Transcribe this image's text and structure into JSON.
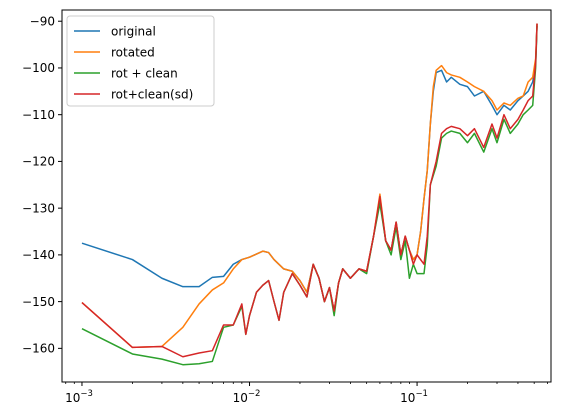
{
  "chart_data": {
    "type": "line",
    "title": "",
    "xlabel": "",
    "ylabel": "",
    "x_scale": "log",
    "xlim": [
      0.00076,
      0.63
    ],
    "ylim": [
      -167.2,
      -87.6
    ],
    "x_ticks": [
      {
        "value": 0.001,
        "base": "10",
        "exp": "−3"
      },
      {
        "value": 0.01,
        "base": "10",
        "exp": "−2"
      },
      {
        "value": 0.1,
        "base": "10",
        "exp": "−1"
      }
    ],
    "y_ticks": [
      {
        "value": -90,
        "label": "−90"
      },
      {
        "value": -100,
        "label": "−100"
      },
      {
        "value": -110,
        "label": "−110"
      },
      {
        "value": -120,
        "label": "−120"
      },
      {
        "value": -130,
        "label": "−130"
      },
      {
        "value": -140,
        "label": "−140"
      },
      {
        "value": -150,
        "label": "−150"
      },
      {
        "value": -160,
        "label": "−160"
      }
    ],
    "grid": false,
    "legend_position": "top-left",
    "series": [
      {
        "name": "original",
        "color": "#1f77b4",
        "points": [
          [
            0.001,
            -137.5
          ],
          [
            0.002,
            -141.0
          ],
          [
            0.003,
            -145.0
          ],
          [
            0.004,
            -146.8
          ],
          [
            0.005,
            -146.8
          ],
          [
            0.006,
            -144.8
          ],
          [
            0.007,
            -144.6
          ],
          [
            0.008,
            -142.0
          ],
          [
            0.009,
            -141.0
          ],
          [
            0.01,
            -140.5
          ],
          [
            0.012,
            -139.2
          ],
          [
            0.013,
            -139.5
          ],
          [
            0.014,
            -141.0
          ],
          [
            0.016,
            -143.0
          ],
          [
            0.018,
            -143.5
          ],
          [
            0.02,
            -145.5
          ],
          [
            0.022,
            -148.0
          ],
          [
            0.024,
            -142.0
          ],
          [
            0.026,
            -145.0
          ],
          [
            0.028,
            -150.0
          ],
          [
            0.03,
            -147.0
          ],
          [
            0.032,
            -152.0
          ],
          [
            0.034,
            -146.0
          ],
          [
            0.036,
            -143.0
          ],
          [
            0.04,
            -145.0
          ],
          [
            0.045,
            -143.0
          ],
          [
            0.05,
            -143.5
          ],
          [
            0.055,
            -136.0
          ],
          [
            0.06,
            -128.0
          ],
          [
            0.065,
            -137.0
          ],
          [
            0.07,
            -139.0
          ],
          [
            0.075,
            -133.0
          ],
          [
            0.08,
            -140.0
          ],
          [
            0.085,
            -136.0
          ],
          [
            0.09,
            -139.0
          ],
          [
            0.095,
            -141.0
          ],
          [
            0.1,
            -140.0
          ],
          [
            0.105,
            -135.0
          ],
          [
            0.11,
            -128.0
          ],
          [
            0.115,
            -122.0
          ],
          [
            0.12,
            -112.0
          ],
          [
            0.125,
            -105.0
          ],
          [
            0.13,
            -101.0
          ],
          [
            0.14,
            -100.5
          ],
          [
            0.15,
            -103.0
          ],
          [
            0.16,
            -102.0
          ],
          [
            0.18,
            -103.5
          ],
          [
            0.2,
            -104.0
          ],
          [
            0.22,
            -106.0
          ],
          [
            0.25,
            -105.0
          ],
          [
            0.28,
            -108.0
          ],
          [
            0.3,
            -110.0
          ],
          [
            0.33,
            -108.0
          ],
          [
            0.36,
            -109.0
          ],
          [
            0.4,
            -107.0
          ],
          [
            0.43,
            -106.0
          ],
          [
            0.46,
            -105.0
          ],
          [
            0.49,
            -103.0
          ],
          [
            0.51,
            -99.0
          ],
          [
            0.52,
            -90.5
          ]
        ]
      },
      {
        "name": "rotated",
        "color": "#ff7f0e",
        "points": [
          [
            0.001,
            -150.2
          ],
          [
            0.002,
            -159.8
          ],
          [
            0.003,
            -159.6
          ],
          [
            0.004,
            -155.5
          ],
          [
            0.005,
            -150.5
          ],
          [
            0.006,
            -147.5
          ],
          [
            0.007,
            -146.0
          ],
          [
            0.008,
            -143.0
          ],
          [
            0.009,
            -141.0
          ],
          [
            0.01,
            -140.5
          ],
          [
            0.012,
            -139.2
          ],
          [
            0.013,
            -139.5
          ],
          [
            0.014,
            -141.0
          ],
          [
            0.016,
            -143.0
          ],
          [
            0.018,
            -143.5
          ],
          [
            0.02,
            -145.5
          ],
          [
            0.022,
            -148.0
          ],
          [
            0.024,
            -142.0
          ],
          [
            0.026,
            -145.0
          ],
          [
            0.028,
            -150.0
          ],
          [
            0.03,
            -147.0
          ],
          [
            0.032,
            -152.0
          ],
          [
            0.034,
            -146.0
          ],
          [
            0.036,
            -143.0
          ],
          [
            0.04,
            -145.0
          ],
          [
            0.045,
            -143.0
          ],
          [
            0.05,
            -143.5
          ],
          [
            0.055,
            -136.0
          ],
          [
            0.06,
            -127.0
          ],
          [
            0.065,
            -137.0
          ],
          [
            0.07,
            -139.0
          ],
          [
            0.075,
            -133.0
          ],
          [
            0.08,
            -140.0
          ],
          [
            0.085,
            -136.0
          ],
          [
            0.09,
            -139.0
          ],
          [
            0.095,
            -141.0
          ],
          [
            0.1,
            -140.0
          ],
          [
            0.105,
            -135.0
          ],
          [
            0.11,
            -128.0
          ],
          [
            0.115,
            -122.0
          ],
          [
            0.12,
            -112.0
          ],
          [
            0.125,
            -104.0
          ],
          [
            0.13,
            -100.5
          ],
          [
            0.14,
            -99.5
          ],
          [
            0.15,
            -101.0
          ],
          [
            0.16,
            -101.5
          ],
          [
            0.18,
            -102.0
          ],
          [
            0.2,
            -103.0
          ],
          [
            0.22,
            -104.0
          ],
          [
            0.25,
            -105.0
          ],
          [
            0.28,
            -107.0
          ],
          [
            0.3,
            -109.0
          ],
          [
            0.33,
            -107.5
          ],
          [
            0.36,
            -108.0
          ],
          [
            0.4,
            -106.5
          ],
          [
            0.43,
            -106.0
          ],
          [
            0.46,
            -103.0
          ],
          [
            0.49,
            -102.0
          ],
          [
            0.51,
            -98.0
          ],
          [
            0.52,
            -90.5
          ]
        ]
      },
      {
        "name": "rot + clean",
        "color": "#2ca02c",
        "points": [
          [
            0.001,
            -155.8
          ],
          [
            0.002,
            -161.2
          ],
          [
            0.003,
            -162.3
          ],
          [
            0.004,
            -163.5
          ],
          [
            0.005,
            -163.3
          ],
          [
            0.006,
            -162.8
          ],
          [
            0.007,
            -155.5
          ],
          [
            0.008,
            -155.0
          ],
          [
            0.009,
            -151.0
          ],
          [
            0.0095,
            -157.0
          ],
          [
            0.01,
            -153.0
          ],
          [
            0.011,
            -148.0
          ],
          [
            0.012,
            -146.5
          ],
          [
            0.013,
            -145.5
          ],
          [
            0.014,
            -150.0
          ],
          [
            0.015,
            -154.0
          ],
          [
            0.016,
            -148.0
          ],
          [
            0.018,
            -144.0
          ],
          [
            0.02,
            -146.5
          ],
          [
            0.022,
            -149.0
          ],
          [
            0.024,
            -142.0
          ],
          [
            0.026,
            -145.0
          ],
          [
            0.028,
            -150.0
          ],
          [
            0.03,
            -147.0
          ],
          [
            0.032,
            -153.0
          ],
          [
            0.034,
            -146.0
          ],
          [
            0.036,
            -143.0
          ],
          [
            0.04,
            -145.0
          ],
          [
            0.045,
            -143.0
          ],
          [
            0.05,
            -144.0
          ],
          [
            0.055,
            -136.0
          ],
          [
            0.06,
            -129.0
          ],
          [
            0.065,
            -137.0
          ],
          [
            0.07,
            -140.0
          ],
          [
            0.075,
            -134.0
          ],
          [
            0.08,
            -141.0
          ],
          [
            0.085,
            -137.0
          ],
          [
            0.09,
            -145.0
          ],
          [
            0.095,
            -142.0
          ],
          [
            0.1,
            -144.0
          ],
          [
            0.11,
            -144.0
          ],
          [
            0.115,
            -138.0
          ],
          [
            0.12,
            -125.0
          ],
          [
            0.13,
            -121.0
          ],
          [
            0.14,
            -115.0
          ],
          [
            0.15,
            -114.0
          ],
          [
            0.16,
            -113.5
          ],
          [
            0.18,
            -114.0
          ],
          [
            0.2,
            -116.0
          ],
          [
            0.22,
            -114.0
          ],
          [
            0.25,
            -118.0
          ],
          [
            0.28,
            -113.0
          ],
          [
            0.3,
            -116.0
          ],
          [
            0.33,
            -111.0
          ],
          [
            0.36,
            -114.0
          ],
          [
            0.4,
            -112.0
          ],
          [
            0.43,
            -110.0
          ],
          [
            0.46,
            -109.0
          ],
          [
            0.49,
            -108.0
          ],
          [
            0.51,
            -100.0
          ],
          [
            0.52,
            -91.0
          ]
        ]
      },
      {
        "name": "rot+clean(sd)",
        "color": "#d62728",
        "points": [
          [
            0.001,
            -150.2
          ],
          [
            0.002,
            -159.8
          ],
          [
            0.003,
            -159.6
          ],
          [
            0.004,
            -161.8
          ],
          [
            0.005,
            -161.0
          ],
          [
            0.006,
            -160.5
          ],
          [
            0.007,
            -155.0
          ],
          [
            0.008,
            -155.0
          ],
          [
            0.009,
            -150.5
          ],
          [
            0.0095,
            -157.0
          ],
          [
            0.01,
            -153.0
          ],
          [
            0.011,
            -148.0
          ],
          [
            0.012,
            -146.5
          ],
          [
            0.013,
            -145.5
          ],
          [
            0.014,
            -150.0
          ],
          [
            0.015,
            -154.0
          ],
          [
            0.016,
            -148.0
          ],
          [
            0.018,
            -144.0
          ],
          [
            0.02,
            -146.5
          ],
          [
            0.022,
            -149.0
          ],
          [
            0.024,
            -142.0
          ],
          [
            0.026,
            -145.0
          ],
          [
            0.028,
            -150.0
          ],
          [
            0.03,
            -147.0
          ],
          [
            0.032,
            -152.0
          ],
          [
            0.034,
            -146.0
          ],
          [
            0.036,
            -143.0
          ],
          [
            0.04,
            -145.0
          ],
          [
            0.045,
            -143.0
          ],
          [
            0.05,
            -143.5
          ],
          [
            0.055,
            -136.0
          ],
          [
            0.06,
            -127.5
          ],
          [
            0.065,
            -137.0
          ],
          [
            0.07,
            -139.0
          ],
          [
            0.075,
            -133.0
          ],
          [
            0.08,
            -140.0
          ],
          [
            0.085,
            -136.0
          ],
          [
            0.09,
            -139.0
          ],
          [
            0.095,
            -142.0
          ],
          [
            0.1,
            -140.0
          ],
          [
            0.11,
            -142.0
          ],
          [
            0.115,
            -136.0
          ],
          [
            0.12,
            -125.0
          ],
          [
            0.13,
            -120.0
          ],
          [
            0.14,
            -114.0
          ],
          [
            0.15,
            -113.0
          ],
          [
            0.16,
            -112.5
          ],
          [
            0.18,
            -113.0
          ],
          [
            0.2,
            -114.5
          ],
          [
            0.22,
            -113.0
          ],
          [
            0.25,
            -117.0
          ],
          [
            0.28,
            -112.0
          ],
          [
            0.3,
            -115.0
          ],
          [
            0.33,
            -110.0
          ],
          [
            0.36,
            -113.0
          ],
          [
            0.4,
            -111.0
          ],
          [
            0.43,
            -109.0
          ],
          [
            0.46,
            -107.0
          ],
          [
            0.49,
            -106.0
          ],
          [
            0.51,
            -99.0
          ],
          [
            0.52,
            -90.5
          ]
        ]
      }
    ]
  }
}
